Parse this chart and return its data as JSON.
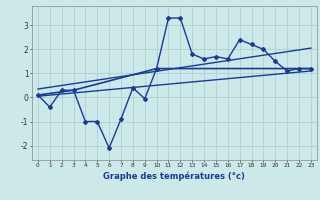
{
  "xlabel": "Graphe des températures (°c)",
  "background_color": "#cce8e8",
  "grid_color": "#aacccc",
  "line_color": "#1a3a9a",
  "x_ticks": [
    0,
    1,
    2,
    3,
    4,
    5,
    6,
    7,
    8,
    9,
    10,
    11,
    12,
    13,
    14,
    15,
    16,
    17,
    18,
    19,
    20,
    21,
    22,
    23
  ],
  "ylim": [
    -2.6,
    3.8
  ],
  "xlim": [
    -0.5,
    23.5
  ],
  "yticks": [
    -2,
    -1,
    0,
    1,
    2,
    3
  ],
  "series": {
    "line1": {
      "x": [
        0,
        1,
        2,
        3,
        4,
        5,
        6,
        7,
        8,
        9,
        10,
        11,
        12,
        13,
        14,
        15,
        16,
        17,
        18,
        19,
        20,
        21,
        22,
        23
      ],
      "y": [
        0.1,
        -0.4,
        0.3,
        0.3,
        -1.0,
        -1.0,
        -2.1,
        -0.9,
        0.4,
        -0.05,
        1.2,
        3.3,
        3.3,
        1.8,
        1.6,
        1.7,
        1.6,
        2.4,
        2.2,
        2.0,
        1.5,
        1.1,
        1.2,
        1.2
      ],
      "marker": "D",
      "markersize": 2.0,
      "linewidth": 1.0
    },
    "line2": {
      "x": [
        0,
        3,
        10,
        23
      ],
      "y": [
        0.1,
        0.3,
        1.2,
        1.2
      ],
      "linewidth": 1.2
    },
    "line3": {
      "x": [
        0,
        23
      ],
      "y": [
        0.05,
        1.1
      ],
      "linewidth": 1.0
    },
    "line4": {
      "x": [
        0,
        23
      ],
      "y": [
        0.35,
        2.05
      ],
      "linewidth": 1.0
    }
  }
}
